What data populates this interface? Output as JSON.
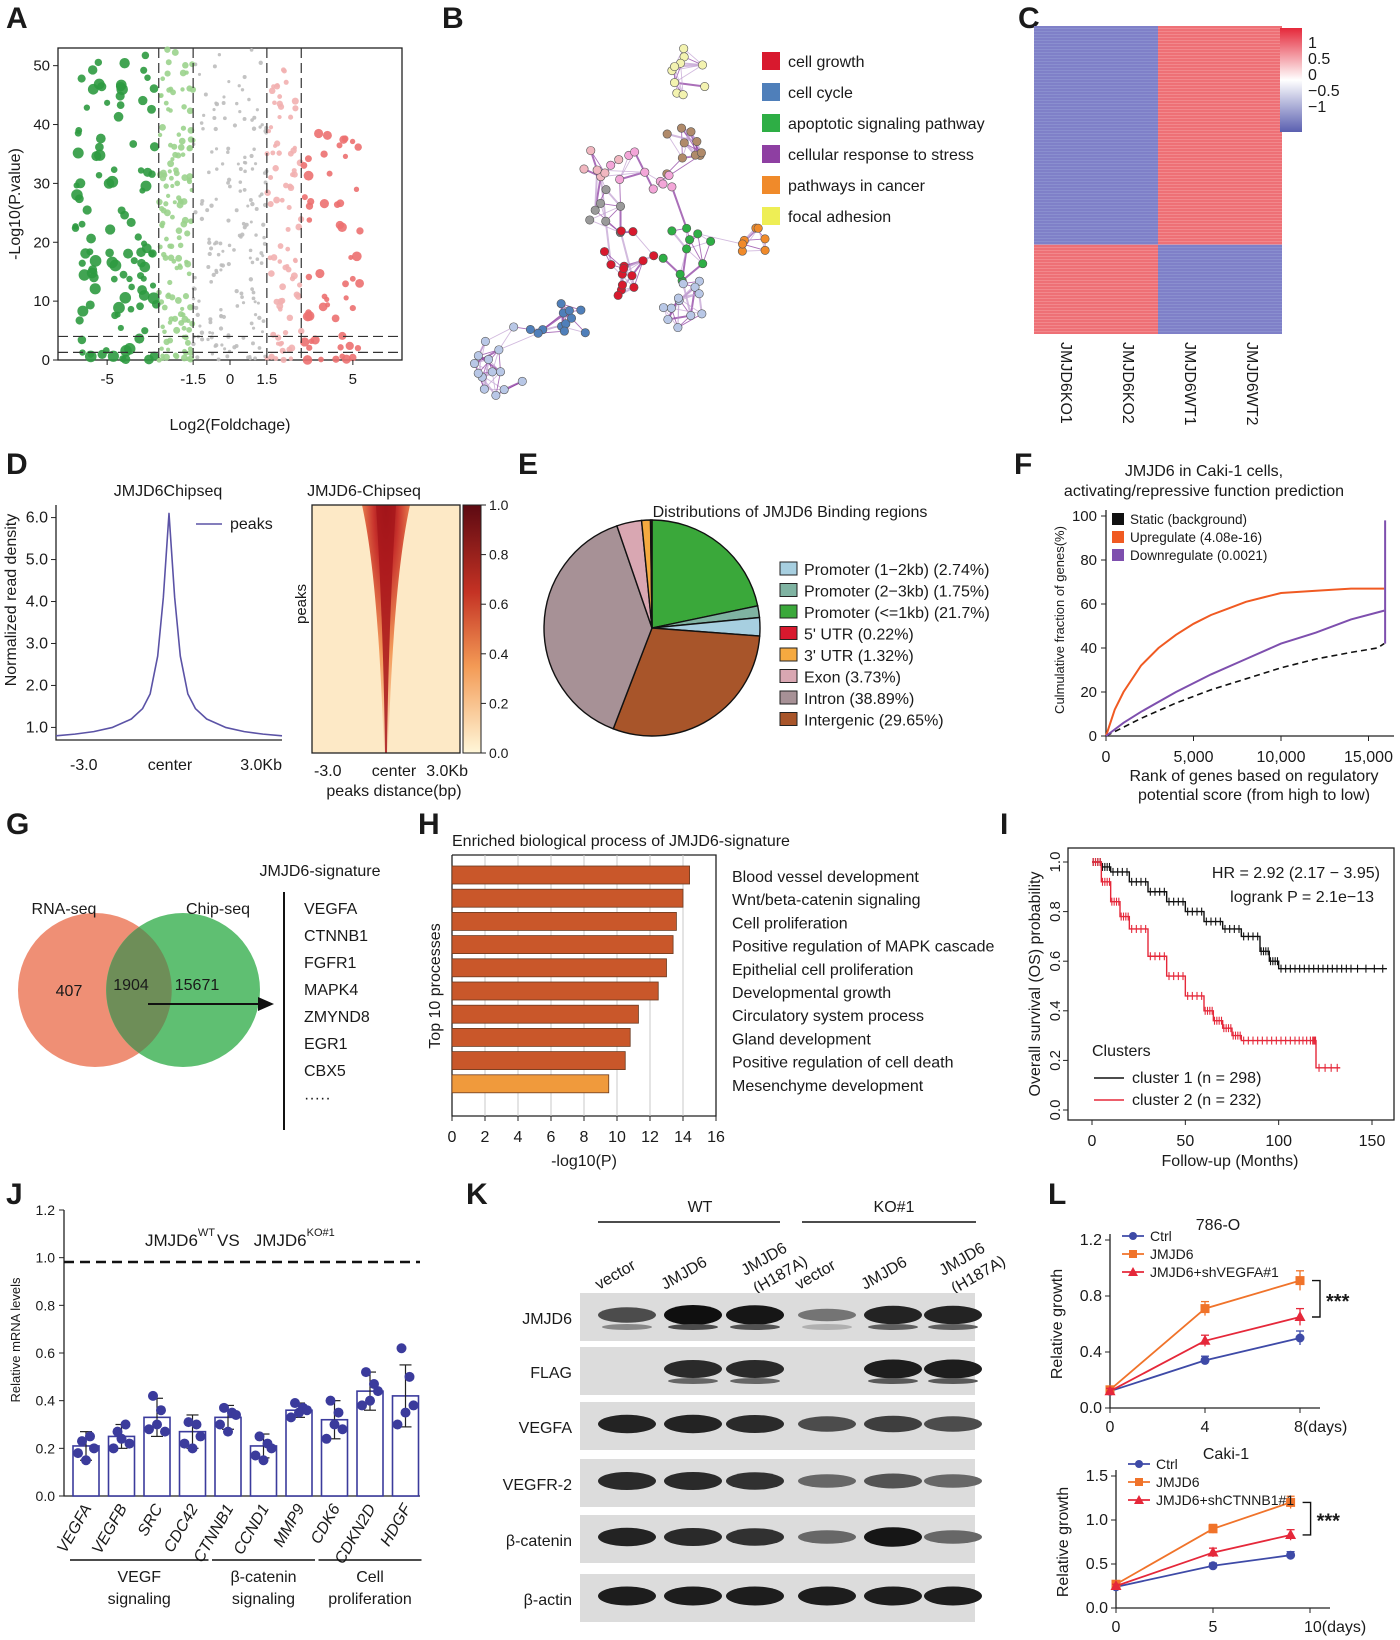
{
  "panel_letters": [
    "A",
    "B",
    "C",
    "D",
    "E",
    "F",
    "G",
    "H",
    "I",
    "J",
    "K",
    "L"
  ],
  "chart_data": [
    {
      "panel": "A",
      "type": "scatter",
      "xlabel": "Log2(Foldchage)",
      "ylabel": "-Log10(P.value)",
      "xticks": [
        "-5",
        "-1.5",
        "0",
        "1.5",
        "5"
      ],
      "yticks": [
        "0",
        "10",
        "20",
        "30",
        "40",
        "50"
      ],
      "xlim": [
        -7,
        7
      ],
      "ylim": [
        0,
        53
      ],
      "thresholds": {
        "fc": [
          -1.5,
          -2.9,
          1.5,
          2.9
        ],
        "p": [
          1.3,
          4
        ]
      },
      "colors": {
        "down_strong": "#2e9a40",
        "down_weak": "#9bd38d",
        "ns": "#bdbdbd",
        "up_weak": "#f2b0b0",
        "up_strong": "#ec7070"
      }
    },
    {
      "panel": "B",
      "type": "network",
      "legend": [
        {
          "label": "cell growth",
          "color": "#d8192e"
        },
        {
          "label": "cell cycle",
          "color": "#4f7fba"
        },
        {
          "label": "apoptotic signaling pathway",
          "color": "#2eae45"
        },
        {
          "label": "cellular response to stress",
          "color": "#8e3fa2"
        },
        {
          "label": "pathways in cancer",
          "color": "#f08a2a"
        },
        {
          "label": "focal adhesion",
          "color": "#eeee55"
        }
      ]
    },
    {
      "panel": "C",
      "type": "heatmap",
      "columns": [
        "JMJD6KO1",
        "JMJD6KO2",
        "JMJD6WT1",
        "JMJD6WT2"
      ],
      "blocks": [
        {
          "rows_fraction": 0.71,
          "values": [
            -1,
            -1,
            1,
            1
          ]
        },
        {
          "rows_fraction": 0.29,
          "values": [
            1,
            1,
            -1,
            -1
          ]
        }
      ],
      "colorbar": {
        "ticks": [
          "1",
          "0.5",
          "0",
          "−0.5",
          "−1"
        ],
        "low": "#5a5fb0",
        "mid": "#ffffff",
        "high": "#e5283a"
      }
    },
    {
      "panel": "D",
      "type": "line",
      "title": "JMJD6Chipseq",
      "ylabel": "Normalized read density",
      "xticks": [
        "-3.0",
        "center",
        "3.0Kb"
      ],
      "yticks": [
        "1.0",
        "2.0",
        "3.0",
        "4.0",
        "5.0",
        "6.0"
      ],
      "ylim": [
        0.7,
        6.3
      ],
      "series": [
        {
          "name": "peaks",
          "x": [
            -3,
            -2.5,
            -2,
            -1.5,
            -1,
            -0.7,
            -0.5,
            -0.3,
            -0.15,
            0,
            0.15,
            0.3,
            0.5,
            0.7,
            1,
            1.5,
            2,
            2.5,
            3
          ],
          "y": [
            0.8,
            0.84,
            0.9,
            1.0,
            1.2,
            1.45,
            1.8,
            2.7,
            4.1,
            6.1,
            4.1,
            2.7,
            1.8,
            1.45,
            1.2,
            1.0,
            0.9,
            0.84,
            0.8
          ],
          "color": "#5b53a6"
        }
      ],
      "heatmap": {
        "title": "JMJD6-Chipseq",
        "ylabel": "peaks",
        "xlabel": "peaks distance(bp)",
        "xticks": [
          "-3.0",
          "center",
          "3.0Kb"
        ],
        "colorbar_ticks": [
          "0.0",
          "0.2",
          "0.4",
          "0.6",
          "0.8",
          "1.0"
        ]
      }
    },
    {
      "panel": "E",
      "type": "pie",
      "title": "Distributions of JMJD6 Binding regions",
      "slices": [
        {
          "label": "Promoter (1−2kb) (2.74%)",
          "value": 2.74,
          "color": "#a7cfe0"
        },
        {
          "label": "Promoter (2−3kb) (1.75%)",
          "value": 1.75,
          "color": "#7fb3a2"
        },
        {
          "label": "Promoter (<=1kb) (21.7%)",
          "value": 21.7,
          "color": "#3aa83a"
        },
        {
          "label": "5' UTR (0.22%)",
          "value": 0.22,
          "color": "#d8192e"
        },
        {
          "label": "3' UTR (1.32%)",
          "value": 1.32,
          "color": "#f5a940"
        },
        {
          "label": "Exon (3.73%)",
          "value": 3.73,
          "color": "#d9a7b2"
        },
        {
          "label": "Intron (38.89%)",
          "value": 38.89,
          "color": "#a79196"
        },
        {
          "label": "Intergenic (29.65%)",
          "value": 29.65,
          "color": "#a8552a"
        }
      ]
    },
    {
      "panel": "F",
      "type": "line",
      "title": "JMJD6 in Caki-1 cells,",
      "subtitle": "activating/repressive function prediction",
      "xlabel": "Rank of genes based on regulatory",
      "xlabel2": "potential score (from high to low)",
      "ylabel": "Culmulative fraction of genes(%)",
      "xticks": [
        "0",
        "5,000",
        "10,000",
        "15,000"
      ],
      "yticks": [
        "0",
        "20",
        "40",
        "60",
        "80",
        "100"
      ],
      "xlim": [
        0,
        16000
      ],
      "ylim": [
        0,
        100
      ],
      "series": [
        {
          "name": "Static (background)",
          "color": "#111111",
          "x": [
            0,
            1000,
            2000,
            4000,
            6000,
            8000,
            10000,
            12000,
            14000,
            15500,
            15900
          ],
          "y": [
            0,
            4,
            8,
            15,
            21,
            26,
            31,
            35,
            38,
            40,
            42
          ]
        },
        {
          "name": "Upregulate (4.08e-16)",
          "color": "#f05a22",
          "x": [
            0,
            500,
            1000,
            2000,
            3000,
            4000,
            5000,
            6000,
            7000,
            8000,
            9000,
            10000,
            12000,
            14000,
            15900
          ],
          "y": [
            0,
            12,
            20,
            32,
            40,
            46,
            51,
            55,
            58,
            61,
            63,
            65,
            66,
            67,
            67
          ]
        },
        {
          "name": "Downregulate (0.0021)",
          "color": "#7e4fae",
          "x": [
            0,
            1000,
            2000,
            4000,
            6000,
            8000,
            10000,
            12000,
            14000,
            15900
          ],
          "y": [
            0,
            6,
            11,
            20,
            28,
            35,
            42,
            47,
            53,
            57
          ]
        }
      ]
    },
    {
      "panel": "G",
      "type": "venn",
      "sets": [
        {
          "name": "RNA-seq",
          "only": "407",
          "color": "#ef8f75"
        },
        {
          "name": "Chip-seq",
          "only": "15671",
          "color": "#5fbf72"
        }
      ],
      "overlap": "1904",
      "overlap_color": "#6e8e58",
      "signature_title": "JMJD6-signature",
      "signature_genes": [
        "VEGFA",
        "CTNNB1",
        "FGFR1",
        "MAPK4",
        "ZMYND8",
        "EGR1",
        "CBX5",
        "·····"
      ]
    },
    {
      "panel": "H",
      "type": "bar",
      "title": "Enriched biological process of JMJD6-signature",
      "xlabel": "-log10(P)",
      "ylabel": "Top 10 processes",
      "xticks": [
        "0",
        "2",
        "4",
        "6",
        "8",
        "10",
        "12",
        "14",
        "16"
      ],
      "xlim": [
        0,
        16
      ],
      "categories": [
        "Blood vessel development",
        "Wnt/beta-catenin signaling",
        "Cell proliferation",
        "Positive regulation of MAPK cascade",
        "Epithelial cell proliferation",
        "Developmental growth",
        "Circulatory system process",
        "Gland development",
        "Positive regulation of cell death",
        "Mesenchyme development"
      ],
      "values": [
        14.4,
        14.0,
        13.6,
        13.4,
        13.0,
        12.5,
        11.3,
        10.8,
        10.5,
        9.5
      ],
      "colors": [
        "#c9572a",
        "#c9572a",
        "#c9572a",
        "#c9572a",
        "#c9572a",
        "#c9572a",
        "#c9572a",
        "#c9572a",
        "#c9572a",
        "#f09a3c"
      ]
    },
    {
      "panel": "I",
      "type": "line",
      "xlabel": "Follow-up (Months)",
      "ylabel": "Overall survival (OS) probability",
      "xticks": [
        "0",
        "50",
        "100",
        "150"
      ],
      "yticks": [
        "0.0",
        "0.2",
        "0.4",
        "0.6",
        "0.8",
        "1.0"
      ],
      "xlim": [
        0,
        150
      ],
      "ylim": [
        0,
        1
      ],
      "hr_text": "HR = 2.92 (2.17 − 3.95)",
      "logrank_text": "logrank P = 2.1e−13",
      "legend_title": "Clusters",
      "series": [
        {
          "name": "cluster 1 (n = 298)",
          "color": "#111111",
          "x": [
            0,
            5,
            10,
            20,
            30,
            40,
            50,
            60,
            70,
            80,
            90,
            95,
            100,
            110,
            120,
            130,
            140,
            158
          ],
          "y": [
            1,
            0.98,
            0.96,
            0.92,
            0.88,
            0.84,
            0.8,
            0.76,
            0.73,
            0.7,
            0.64,
            0.6,
            0.57,
            0.57,
            0.57,
            0.57,
            0.57,
            0.57
          ]
        },
        {
          "name": "cluster 2 (n = 232)",
          "color": "#e5283a",
          "x": [
            0,
            5,
            10,
            15,
            20,
            30,
            40,
            50,
            60,
            65,
            70,
            75,
            80,
            90,
            100,
            110,
            118,
            120,
            133
          ],
          "y": [
            1,
            0.92,
            0.84,
            0.78,
            0.73,
            0.62,
            0.54,
            0.46,
            0.4,
            0.36,
            0.33,
            0.3,
            0.28,
            0.28,
            0.28,
            0.28,
            0.28,
            0.17,
            0.17
          ]
        }
      ]
    },
    {
      "panel": "J",
      "type": "bar",
      "ylabel": "Relative mRNA levels",
      "title_left": "JMJD6",
      "title_sup1": "WT",
      "title_vs": "VS",
      "title_right": "JMJD6",
      "title_sup2": "KO#1",
      "yticks": [
        "0.0",
        "0.2",
        "0.4",
        "0.6",
        "0.8",
        "1.0",
        "1.2"
      ],
      "ylim": [
        0,
        1.2
      ],
      "reference_line": 1.0,
      "categories": [
        "VEGFA",
        "VEGFB",
        "SRC",
        "CDC42",
        "CTNNB1",
        "CCND1",
        "MMP9",
        "CDK6",
        "CDKN2D",
        "HDGF"
      ],
      "values": [
        0.21,
        0.25,
        0.33,
        0.27,
        0.33,
        0.21,
        0.36,
        0.32,
        0.44,
        0.42
      ],
      "errors": [
        0.06,
        0.05,
        0.08,
        0.07,
        0.05,
        0.05,
        0.03,
        0.08,
        0.08,
        0.13
      ],
      "points": [
        [
          0.18,
          0.23,
          0.15,
          0.25,
          0.2
        ],
        [
          0.2,
          0.27,
          0.24,
          0.3,
          0.22
        ],
        [
          0.28,
          0.42,
          0.3,
          0.36,
          0.27
        ],
        [
          0.22,
          0.31,
          0.2,
          0.3,
          0.25
        ],
        [
          0.3,
          0.37,
          0.27,
          0.35,
          0.34
        ],
        [
          0.17,
          0.25,
          0.15,
          0.22,
          0.2
        ],
        [
          0.33,
          0.39,
          0.35,
          0.37,
          0.36
        ],
        [
          0.24,
          0.4,
          0.3,
          0.35,
          0.28
        ],
        [
          0.38,
          0.52,
          0.4,
          0.47,
          0.44
        ],
        [
          0.3,
          0.62,
          0.35,
          0.5,
          0.38
        ]
      ],
      "groups": [
        {
          "label1": "VEGF",
          "label2": "signaling",
          "from": 0,
          "to": 3
        },
        {
          "label1": "β-catenin",
          "label2": "signaling",
          "from": 4,
          "to": 6
        },
        {
          "label1": "Cell",
          "label2": "proliferation",
          "from": 7,
          "to": 9
        }
      ],
      "color": "#3b3b9c"
    },
    {
      "panel": "K",
      "type": "table",
      "groups": [
        "WT",
        "KO#1"
      ],
      "lanes": [
        "vector",
        "JMJD6",
        "JMJD6 (H187A)",
        "vector",
        "JMJD6",
        "JMJD6 (H187A)"
      ],
      "rows": [
        {
          "name": "JMJD6",
          "intensity": [
            0.55,
            1.0,
            0.95,
            0.25,
            0.85,
            0.85
          ]
        },
        {
          "name": "FLAG",
          "intensity": [
            0.0,
            0.8,
            0.8,
            0.0,
            0.9,
            0.9
          ]
        },
        {
          "name": "VEGFA",
          "intensity": [
            0.85,
            0.85,
            0.8,
            0.55,
            0.65,
            0.55
          ]
        },
        {
          "name": "VEGFR-2",
          "intensity": [
            0.8,
            0.8,
            0.75,
            0.35,
            0.5,
            0.35
          ]
        },
        {
          "name": "β-catenin",
          "intensity": [
            0.85,
            0.8,
            0.75,
            0.35,
            0.95,
            0.35
          ]
        },
        {
          "name": "β-actin",
          "intensity": [
            0.9,
            0.9,
            0.9,
            0.9,
            0.9,
            0.9
          ]
        }
      ]
    },
    {
      "panel": "L",
      "type": "line",
      "title": "786-O",
      "ylabel": "Relative growth",
      "xticks": [
        "0",
        "4",
        "8(days)"
      ],
      "x": [
        0,
        4,
        8
      ],
      "yticks": [
        "0.0",
        "0.4",
        "0.8",
        "1.2"
      ],
      "ylim": [
        0,
        1.2
      ],
      "significance": "***",
      "series": [
        {
          "name": "Ctrl",
          "color": "#3e4aa7",
          "marker": "circle",
          "values": [
            0.12,
            0.34,
            0.5
          ],
          "errors": [
            0.02,
            0.03,
            0.05
          ]
        },
        {
          "name": "JMJD6",
          "color": "#f0732a",
          "marker": "square",
          "values": [
            0.13,
            0.71,
            0.91
          ],
          "errors": [
            0.02,
            0.05,
            0.07
          ]
        },
        {
          "name": "JMJD6+shVEGFA#1",
          "color": "#e5283a",
          "marker": "triangle",
          "values": [
            0.12,
            0.48,
            0.65
          ],
          "errors": [
            0.02,
            0.04,
            0.06
          ]
        }
      ]
    },
    {
      "panel": "L",
      "type": "line",
      "title": "Caki-1",
      "ylabel": "Relative growth",
      "xticks": [
        "0",
        "5",
        "10(days)"
      ],
      "x": [
        0,
        5,
        9
      ],
      "yticks": [
        "0.0",
        "0.5",
        "1.0",
        "1.5"
      ],
      "ylim": [
        0,
        1.5
      ],
      "significance": "***",
      "series": [
        {
          "name": "Ctrl",
          "color": "#3e4aa7",
          "marker": "circle",
          "values": [
            0.24,
            0.48,
            0.6
          ],
          "errors": [
            0.02,
            0.03,
            0.04
          ]
        },
        {
          "name": "JMJD6",
          "color": "#f0732a",
          "marker": "square",
          "values": [
            0.27,
            0.9,
            1.2
          ],
          "errors": [
            0.03,
            0.05,
            0.07
          ]
        },
        {
          "name": "JMJD6+shCTNNB1#1",
          "color": "#e5283a",
          "marker": "triangle",
          "values": [
            0.25,
            0.63,
            0.83
          ],
          "errors": [
            0.02,
            0.05,
            0.06
          ]
        }
      ]
    }
  ]
}
